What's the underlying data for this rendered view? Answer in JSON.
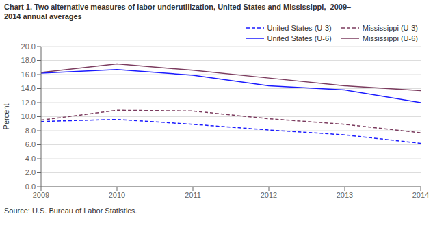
{
  "chart_data": {
    "type": "line",
    "title": "Chart 1. Two alternative measures of labor underutilization, United States and Mississippi,  2009–\n2014 annual averages",
    "y_label": "Percent",
    "annotations": [
      "Source: U.S. Bureau of Labor Statistics."
    ],
    "x": [
      2009,
      2010,
      2011,
      2012,
      2013,
      2014
    ],
    "xlim": [
      2009,
      2014
    ],
    "xticks": [
      2009,
      2010,
      2011,
      2012,
      2013,
      2014
    ],
    "ylim": [
      0,
      20.0
    ],
    "yticks": [
      {
        "value": 0,
        "label": "0.0"
      },
      {
        "value": 2,
        "label": "2.0"
      },
      {
        "value": 4,
        "label": "4.0"
      },
      {
        "value": 6,
        "label": "6.0"
      },
      {
        "value": 8,
        "label": "8.0"
      },
      {
        "value": 10,
        "label": "10.0"
      },
      {
        "value": 12,
        "label": "12.0"
      },
      {
        "value": 14,
        "label": "14.0"
      },
      {
        "value": 16,
        "label": "16.0"
      },
      {
        "value": 18,
        "label": "18.0"
      },
      {
        "value": 20,
        "label": "20.0"
      }
    ],
    "grid": "y",
    "legend": "upper right",
    "series": [
      {
        "name": "United States (U-3)",
        "color": "#1a1aff",
        "line_style": "dashed",
        "values": [
          9.3,
          9.6,
          8.9,
          8.1,
          7.4,
          6.2
        ]
      },
      {
        "name": "Mississippi (U-3)",
        "color": "#7b3b5e",
        "line_style": "dashed",
        "values": [
          9.5,
          10.9,
          10.8,
          9.7,
          8.9,
          7.7
        ]
      },
      {
        "name": "United States (U-6)",
        "color": "#1a1aff",
        "line_style": "solid",
        "values": [
          16.2,
          16.7,
          15.9,
          14.4,
          13.8,
          12.0
        ]
      },
      {
        "name": "Mississippi (U-6)",
        "color": "#7b3b5e",
        "line_style": "solid",
        "values": [
          16.3,
          17.5,
          16.6,
          15.5,
          14.4,
          13.7
        ]
      }
    ]
  }
}
